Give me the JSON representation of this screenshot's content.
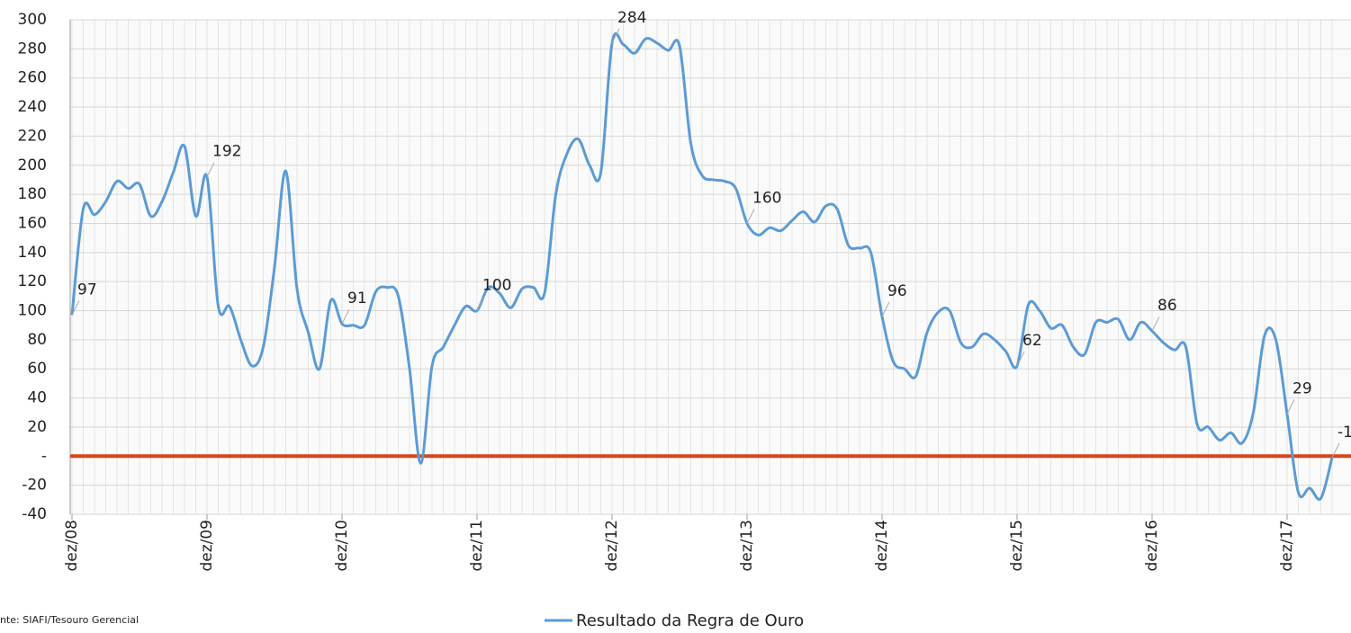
{
  "chart_data": {
    "type": "line",
    "source": "nte: SIAFI/Tesouro Gerencial",
    "categories": [
      "dez/08",
      null,
      null,
      null,
      null,
      null,
      null,
      null,
      null,
      null,
      null,
      null,
      "dez/09",
      null,
      null,
      null,
      null,
      null,
      null,
      null,
      null,
      null,
      null,
      null,
      "dez/10",
      null,
      null,
      null,
      null,
      null,
      null,
      null,
      null,
      null,
      null,
      null,
      "dez/11",
      null,
      null,
      null,
      null,
      null,
      null,
      null,
      null,
      null,
      null,
      null,
      "dez/12",
      null,
      null,
      null,
      null,
      null,
      null,
      null,
      null,
      null,
      null,
      null,
      "dez/13",
      null,
      null,
      null,
      null,
      null,
      null,
      null,
      null,
      null,
      null,
      null,
      "dez/14",
      null,
      null,
      null,
      null,
      null,
      null,
      null,
      null,
      null,
      null,
      null,
      "dez/15",
      null,
      null,
      null,
      null,
      null,
      null,
      null,
      null,
      null,
      null,
      null,
      "dez/16",
      null,
      null,
      null,
      null,
      null,
      null,
      null,
      null,
      null,
      null,
      null,
      "dez/17",
      null,
      null,
      null,
      null
    ],
    "series": [
      {
        "name": "Resultado da Regra de Ouro",
        "color": "#5b9bd5",
        "values": [
          97,
          170,
          166,
          175,
          189,
          184,
          187,
          165,
          175,
          195,
          213,
          165,
          192,
          103,
          103,
          80,
          62,
          75,
          130,
          196,
          115,
          85,
          60,
          107,
          91,
          90,
          90,
          113,
          116,
          110,
          60,
          -5,
          62,
          75,
          90,
          103,
          100,
          116,
          112,
          102,
          115,
          116,
          112,
          180,
          208,
          218,
          200,
          195,
          284,
          283,
          277,
          287,
          284,
          279,
          282,
          215,
          193,
          190,
          189,
          184,
          160,
          152,
          157,
          155,
          162,
          168,
          161,
          172,
          170,
          145,
          143,
          140,
          96,
          65,
          60,
          55,
          85,
          99,
          100,
          78,
          75,
          84,
          80,
          72,
          62,
          104,
          100,
          88,
          90,
          75,
          70,
          92,
          92,
          94,
          80,
          92,
          86,
          78,
          73,
          75,
          22,
          20,
          11,
          16,
          9,
          30,
          83,
          80,
          29,
          -25,
          -22,
          -29,
          -1
        ]
      }
    ],
    "label_indices": [
      0,
      12,
      24,
      36,
      48,
      60,
      72,
      84,
      96,
      108,
      112
    ],
    "ylim": [
      -40,
      300
    ],
    "yticks": [
      -40,
      -20,
      {
        "value": 0,
        "label": "-"
      },
      20,
      40,
      60,
      80,
      100,
      120,
      140,
      160,
      180,
      200,
      220,
      240,
      260,
      280,
      300
    ],
    "reference_line": {
      "value": 0,
      "color": "#d9441c"
    },
    "grid": true,
    "legend": "bottom"
  }
}
